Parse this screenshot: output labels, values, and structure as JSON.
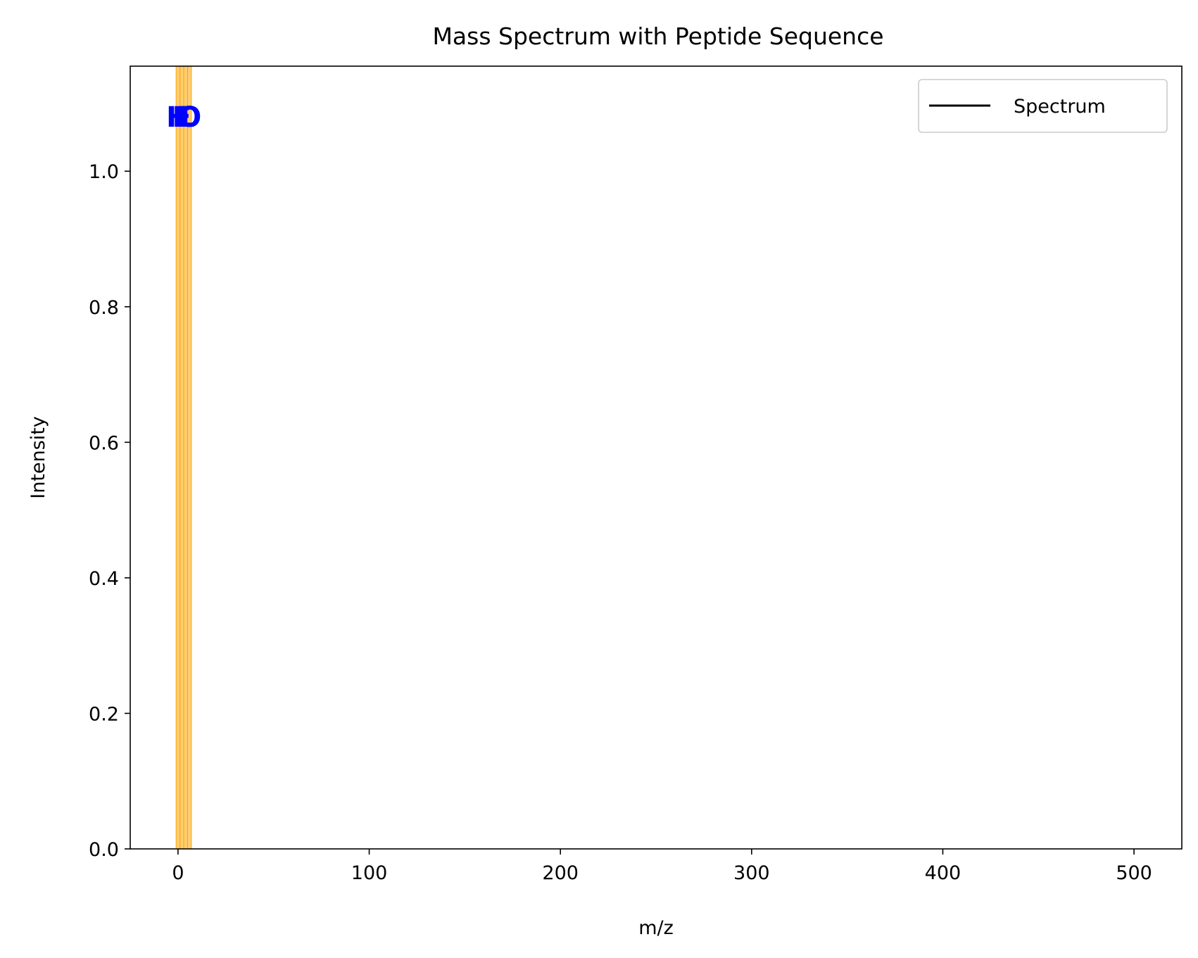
{
  "chart_data": {
    "type": "line",
    "title": "Mass Spectrum with Peptide Sequence",
    "xlabel": "m/z",
    "ylabel": "Intensity",
    "xlim": [
      -25,
      525
    ],
    "ylim": [
      0,
      1.155
    ],
    "xticks": [
      0,
      100,
      200,
      300,
      400,
      500
    ],
    "yticks": [
      0.0,
      0.2,
      0.4,
      0.6,
      0.8,
      1.0
    ],
    "xtick_labels": [
      "0",
      "100",
      "200",
      "300",
      "400",
      "500"
    ],
    "ytick_labels": [
      "0.0",
      "0.2",
      "0.4",
      "0.6",
      "0.8",
      "1.0"
    ],
    "grid": false,
    "legend": {
      "placement": "top-right",
      "entries": [
        "Spectrum"
      ]
    },
    "series": [
      {
        "name": "Spectrum",
        "color": "#000000",
        "x": [],
        "y": []
      }
    ],
    "highlight_bands": {
      "color": "#ffa500",
      "opacity": 0.55,
      "ranges": [
        [
          -1,
          1
        ],
        [
          1,
          3
        ],
        [
          3,
          5
        ],
        [
          5,
          7
        ]
      ]
    },
    "residue_labels": {
      "color": "#0000ff",
      "y": 1.08,
      "items": [
        {
          "text": "H",
          "x": 0
        },
        {
          "text": "E",
          "x": 2
        },
        {
          "text": "L",
          "x": 4
        },
        {
          "text": "O",
          "x": 6
        }
      ]
    }
  }
}
